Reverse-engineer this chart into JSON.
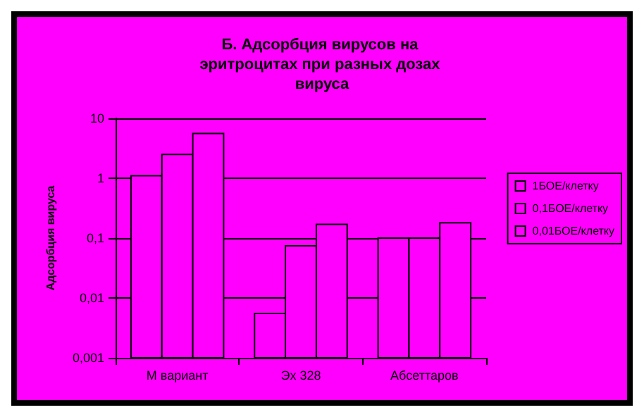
{
  "chart_data": {
    "type": "bar",
    "title": "Б. Адсорбция вирусов на эритроцитах при разных дозах вируса",
    "ylabel": "Адсорбция вируса",
    "categories": [
      "М вариант",
      "Эх 328",
      "Абсеттаров"
    ],
    "series": [
      {
        "name": "1БОЕ/клетку",
        "color": "#ff00ff",
        "values": [
          1.1,
          0.0055,
          0.1
        ]
      },
      {
        "name": "0,1БОЕ/клетку",
        "color": "#ff00ff",
        "values": [
          2.5,
          0.074,
          0.1
        ]
      },
      {
        "name": "0,01БОЕ/клетку",
        "color": "#ff00ff",
        "values": [
          5.6,
          0.17,
          0.18
        ]
      }
    ],
    "log": true,
    "ylim": [
      0.001,
      10
    ],
    "yticks": [
      {
        "value": 0.001,
        "label": "0,001"
      },
      {
        "value": 0.01,
        "label": "0,01"
      },
      {
        "value": 0.1,
        "label": "0,1"
      },
      1,
      10
    ],
    "grid": "y",
    "legend": "right"
  }
}
